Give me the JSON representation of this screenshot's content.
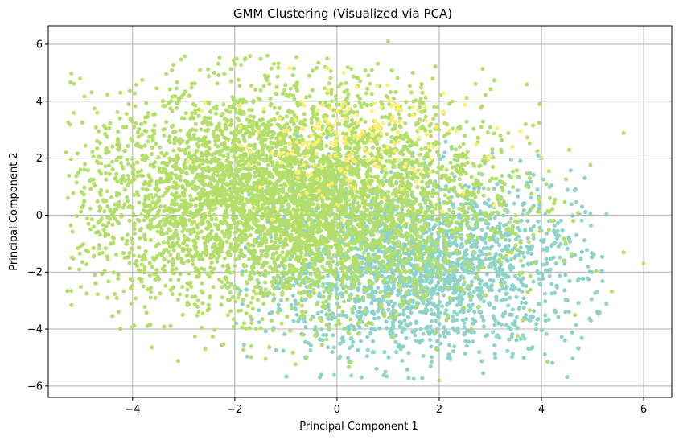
{
  "chart_data": {
    "type": "scatter",
    "title": "GMM Clustering (Visualized via PCA)",
    "xlabel": "Principal Component 1",
    "ylabel": "Principal Component 2",
    "xlim": [
      -5.65,
      6.55
    ],
    "ylim": [
      -6.4,
      6.65
    ],
    "xticks": [
      -4,
      -2,
      0,
      2,
      4,
      6
    ],
    "yticks": [
      -6,
      -4,
      -2,
      0,
      2,
      4,
      6
    ],
    "grid": true,
    "legend": "none",
    "series": [
      {
        "color": "#b3de69",
        "center": [
          -1.0,
          0.6
        ],
        "spread": [
          2.0,
          1.9
        ],
        "x_range": [
          -5.3,
          6.0
        ],
        "y_range": [
          -5.7,
          5.7
        ]
      },
      {
        "color": "#8dd3c7",
        "center": [
          1.6,
          -1.8
        ],
        "spread": [
          1.6,
          1.6
        ],
        "x_range": [
          -2.0,
          5.3
        ],
        "y_range": [
          -5.8,
          2.9
        ]
      },
      {
        "color": "#ffed6f",
        "center": [
          0.3,
          2.6
        ],
        "spread": [
          1.2,
          1.0
        ],
        "x_range": [
          -3.0,
          4.1
        ],
        "y_range": [
          -5.3,
          6.1
        ]
      }
    ],
    "highlight_points": [
      {
        "x": -5.3,
        "y": 2.2
      },
      {
        "x": 6.0,
        "y": -1.7
      },
      {
        "x": 1.0,
        "y": 6.1
      },
      {
        "x": 2.0,
        "y": -5.8
      }
    ]
  }
}
